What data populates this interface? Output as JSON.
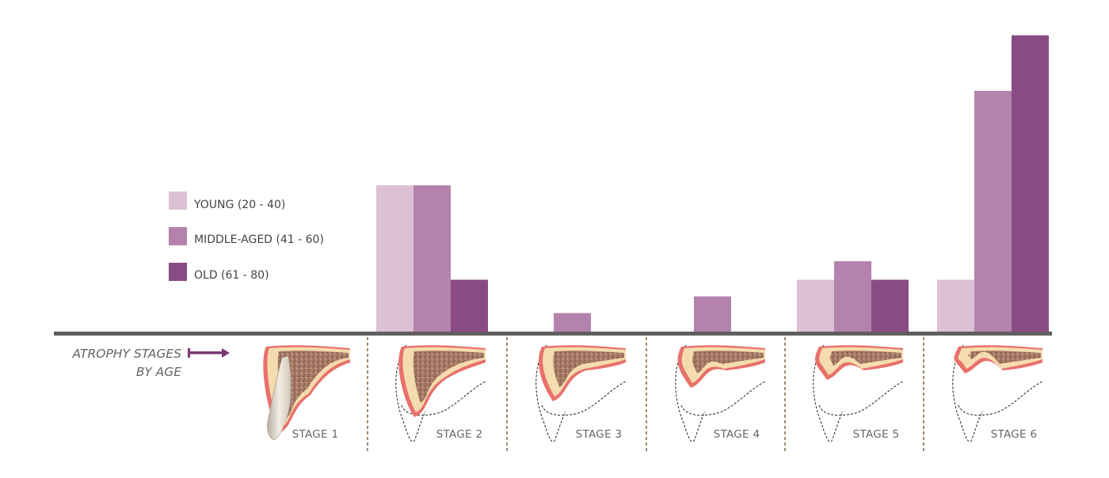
{
  "chart_data": {
    "type": "bar",
    "categories": [
      "STAGE 1",
      "STAGE 2",
      "STAGE 3",
      "STAGE 4",
      "STAGE 5",
      "STAGE 6"
    ],
    "series": [
      {
        "name": "YOUNG (20 - 40)",
        "color": "#dcc0d4",
        "values": [
          0,
          7.9,
          0,
          0,
          2.8,
          2.8
        ]
      },
      {
        "name": "MIDDLE-AGED (41 - 60)",
        "color": "#b482ac",
        "values": [
          0,
          7.9,
          1.0,
          1.9,
          3.8,
          13.0
        ]
      },
      {
        "name": "OLD (61 - 80)",
        "color": "#8a4a84",
        "values": [
          0,
          2.8,
          0,
          0,
          2.8,
          16.0
        ]
      }
    ],
    "legend_position": "left",
    "row_label": [
      "ATROPHY STAGES",
      "BY AGE"
    ],
    "grid": false
  }
}
